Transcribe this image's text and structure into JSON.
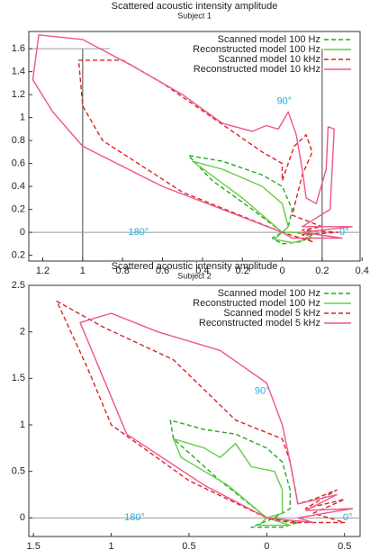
{
  "chart_data": [
    {
      "type": "polar-line",
      "title": "Scattered acoustic intensity amplitude",
      "subtitle": "Subject 1",
      "xlim": [
        -1.27,
        0.39
      ],
      "ylim": [
        -0.25,
        1.75
      ],
      "xticks": [
        {
          "value": -1.2,
          "label": "1.2"
        },
        {
          "value": -1,
          "label": "1"
        },
        {
          "value": -0.8,
          "label": "0.8"
        },
        {
          "value": -0.6,
          "label": "0.6"
        },
        {
          "value": -0.4,
          "label": "0.4"
        },
        {
          "value": -0.2,
          "label": "0.2"
        },
        0,
        0.2,
        0.4
      ],
      "yticks": [
        {
          "value": -0.2,
          "label": "0.2"
        },
        0,
        0.2,
        0.4,
        0.6,
        0.8,
        1,
        1.2,
        1.4,
        1.6
      ],
      "reference_lines": {
        "x": [
          -1,
          0.2
        ],
        "y": [
          0,
          1.6
        ]
      },
      "annotations": [
        {
          "text": "90°",
          "x": 0.01,
          "y": 1.14
        },
        {
          "text": "180°",
          "x": -0.72,
          "y": 0
        },
        {
          "text": "0°",
          "x": 0.31,
          "y": 0
        }
      ],
      "legend": "upper right",
      "series": [
        {
          "name": "Scanned model 100 Hz",
          "color": "#22aa22",
          "line_style": "dashed",
          "x": [
            0,
            -0.15,
            -0.35,
            -0.47,
            -0.3,
            -0.1,
            0,
            0.05,
            0.03,
            0,
            -0.05,
            0,
            0.1,
            0.15,
            0.05,
            0
          ],
          "values": [
            0,
            0.2,
            0.45,
            0.67,
            0.62,
            0.5,
            0.4,
            0.2,
            0.05,
            0,
            -0.05,
            -0.1,
            -0.08,
            -0.02,
            0,
            0
          ]
        },
        {
          "name": "Reconstructed model 100 Hz",
          "color": "#66cc44",
          "line_style": "solid",
          "x": [
            0,
            -0.2,
            -0.45,
            -0.3,
            -0.1,
            0,
            0.03,
            0,
            -0.04,
            0.05,
            0.15,
            0.1,
            0
          ],
          "values": [
            0,
            0.3,
            0.62,
            0.55,
            0.4,
            0.25,
            0.05,
            0,
            -0.06,
            -0.09,
            -0.05,
            0,
            0
          ]
        },
        {
          "name": "Scanned model 10 kHz",
          "color": "#dd2222",
          "line_style": "dashed",
          "x": [
            0,
            -0.5,
            -0.9,
            -1,
            -1.02,
            -0.8,
            -0.6,
            -0.35,
            -0.1,
            0,
            0,
            0.06,
            0.12,
            0.15,
            0.1,
            0.05,
            0.2,
            0.1,
            0.28,
            0.1,
            0.15,
            0
          ],
          "values": [
            0,
            0.35,
            0.8,
            1.1,
            1.5,
            1.5,
            1.3,
            1,
            0.7,
            0.6,
            0.45,
            0.75,
            0.85,
            0.7,
            0.5,
            0.15,
            0.05,
            0.02,
            0,
            -0.02,
            -0.08,
            0
          ]
        },
        {
          "name": "Reconstructed model 10 kHz",
          "color": "#ee5588",
          "line_style": "solid",
          "x": [
            0,
            -0.6,
            -1,
            -1.15,
            -1.25,
            -1.22,
            -1,
            -0.75,
            -0.5,
            -0.3,
            -0.15,
            -0.08,
            -0.02,
            0.03,
            0.07,
            0.1,
            0.12,
            0.17,
            0.22,
            0.23,
            0.26,
            0.24,
            0.1,
            0.35,
            0.1,
            0.3,
            0.05,
            0
          ],
          "values": [
            0,
            0.4,
            0.75,
            1.05,
            1.33,
            1.72,
            1.68,
            1.45,
            1.2,
            0.95,
            0.88,
            0.93,
            0.9,
            1.05,
            0.85,
            0.55,
            0.3,
            0.25,
            0.55,
            0.92,
            0.9,
            0.2,
            0.05,
            0.05,
            0,
            -0.05,
            -0.05,
            0
          ]
        }
      ]
    },
    {
      "type": "polar-line",
      "title": "Scattered acoustic intensity amplitude",
      "subtitle": "Subject 2",
      "xlim": [
        -1.53,
        0.6
      ],
      "ylim": [
        -0.2,
        2.5
      ],
      "xticks": [
        {
          "value": -1.5,
          "label": "1.5"
        },
        {
          "value": -1,
          "label": "1"
        },
        {
          "value": -0.5,
          "label": "0.5"
        },
        0,
        0.5
      ],
      "yticks": [
        0,
        0.5,
        1,
        1.5,
        2,
        2.5
      ],
      "reference_lines": {
        "x": [],
        "y": [
          0
        ]
      },
      "annotations": [
        {
          "text": "90°",
          "x": -0.03,
          "y": 1.36
        },
        {
          "text": "180°",
          "x": -0.85,
          "y": 0
        },
        {
          "text": "0°",
          "x": 0.52,
          "y": 0
        }
      ],
      "legend": "upper right",
      "series": [
        {
          "name": "Scanned model 100 Hz",
          "color": "#22aa22",
          "line_style": "dashed",
          "x": [
            0,
            -0.3,
            -0.6,
            -0.62,
            -0.4,
            -0.2,
            0,
            0.1,
            0.15,
            0.15,
            0.05,
            -0.1,
            0.1,
            0.2,
            0
          ],
          "values": [
            0,
            0.4,
            0.85,
            1.05,
            0.95,
            0.9,
            0.75,
            0.6,
            0.3,
            0.1,
            0,
            -0.1,
            -0.1,
            -0.05,
            0
          ]
        },
        {
          "name": "Reconstructed model 100 Hz",
          "color": "#66cc44",
          "line_style": "solid",
          "x": [
            0,
            -0.25,
            -0.55,
            -0.6,
            -0.4,
            -0.3,
            -0.2,
            -0.1,
            0.05,
            0.1,
            0.1,
            0,
            -0.05,
            0.15,
            0
          ],
          "values": [
            0,
            0.35,
            0.65,
            0.85,
            0.75,
            0.65,
            0.8,
            0.55,
            0.5,
            0.3,
            0.05,
            0,
            -0.08,
            -0.08,
            0
          ]
        },
        {
          "name": "Scanned model 5 kHz",
          "color": "#dd2222",
          "line_style": "dashed",
          "x": [
            0,
            -0.5,
            -1,
            -1.15,
            -1.35,
            -1.05,
            -0.6,
            -0.2,
            0.1,
            0.15,
            0.2,
            0.3,
            0.45,
            0.25,
            0.5,
            0.3,
            0.5,
            0.15,
            0
          ],
          "values": [
            0,
            0.4,
            1,
            1.6,
            2.33,
            2.05,
            1.7,
            1.05,
            0.85,
            0.6,
            0.15,
            0.2,
            0.3,
            0.1,
            0.2,
            0.05,
            -0.05,
            -0.05,
            0
          ]
        },
        {
          "name": "Reconstructed model 5 kHz",
          "color": "#ee5588",
          "line_style": "solid",
          "x": [
            0,
            -0.4,
            -0.9,
            -1.05,
            -1.2,
            -1,
            -0.7,
            -0.3,
            0,
            0.1,
            0.15,
            0.2,
            0.45,
            0.25,
            0.55,
            0.2,
            0.3,
            0
          ],
          "values": [
            0,
            0.35,
            0.9,
            1.5,
            2.1,
            2.2,
            2,
            1.8,
            1.45,
            1,
            0.6,
            0.15,
            0.25,
            0.08,
            0.1,
            0,
            -0.05,
            0
          ]
        }
      ]
    }
  ]
}
